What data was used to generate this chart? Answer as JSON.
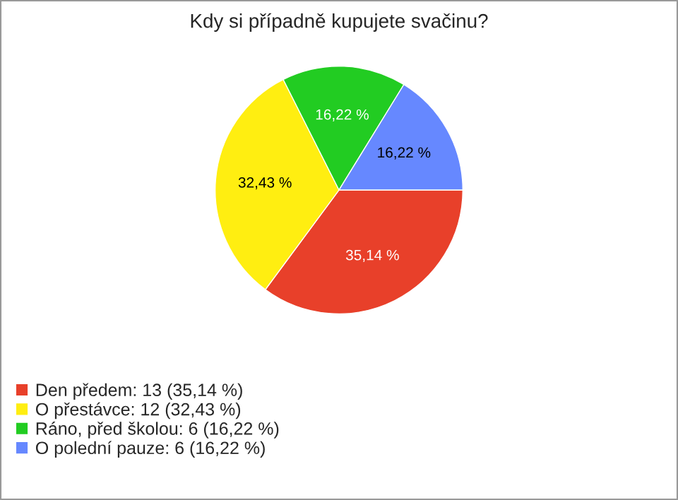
{
  "chart_data": {
    "type": "pie",
    "title": "Kdy si případně kupujete svačinu?",
    "categories": [
      "Den předem: 13 (35,14 %)",
      "O přestávce: 12 (32,43 %)",
      "Ráno, před školou: 6 (16,22 %)",
      "O polední pauze: 6 (16,22 %)"
    ],
    "values": [
      35.14,
      32.43,
      16.22,
      16.22
    ],
    "value_labels": [
      "35,14 %",
      "32,43 %",
      "16,22 %",
      "16,22 %"
    ],
    "colors": [
      "#e8402a",
      "#ffee11",
      "#22cc22",
      "#6688ff"
    ],
    "legend": "bottom left"
  }
}
